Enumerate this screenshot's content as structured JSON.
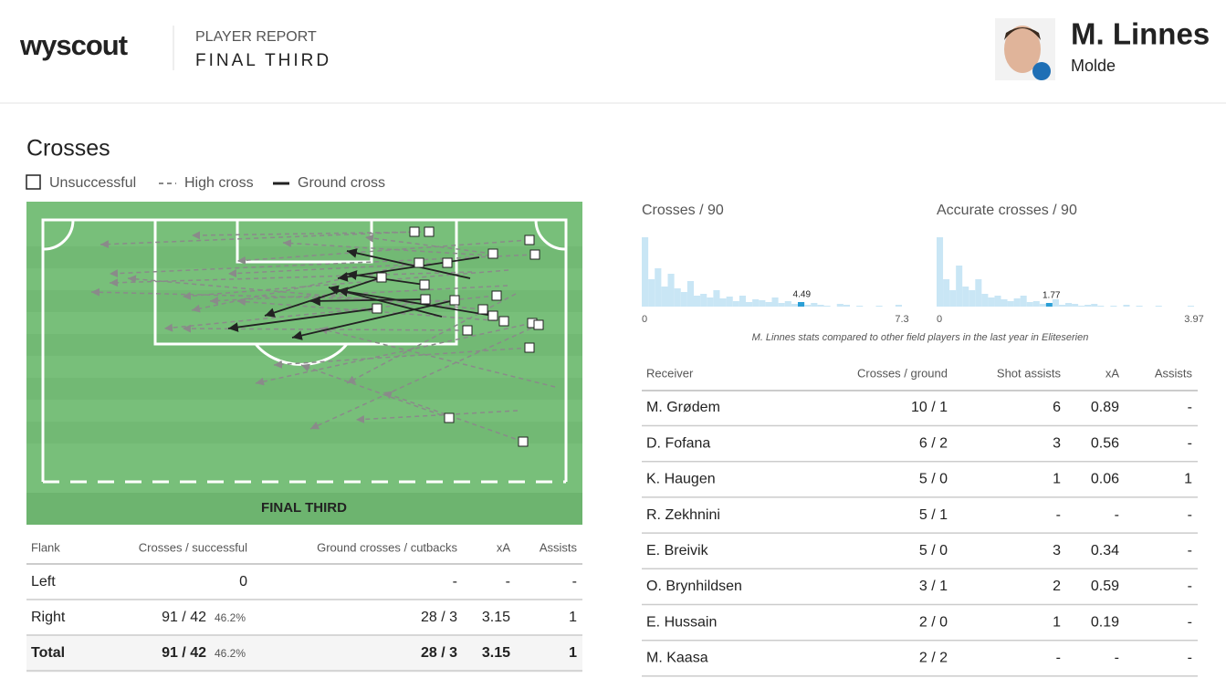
{
  "header": {
    "logo": "wyscout",
    "report": "PLAYER REPORT",
    "section": "FINAL THIRD",
    "player": "M. Linnes",
    "team": "Molde"
  },
  "crosses": {
    "title": "Crosses",
    "legend": [
      "Unsuccessful",
      "High cross",
      "Ground cross"
    ],
    "pitch_label": "FINAL THIRD",
    "flank_table": {
      "columns": [
        "Flank",
        "Crosses / successful",
        "Ground crosses / cutbacks",
        "xA",
        "Assists"
      ],
      "rows": [
        {
          "flank": "Left",
          "crosses": "0",
          "ground": "-",
          "xa": "-",
          "assists": "-"
        },
        {
          "flank": "Right",
          "crosses": "91 / 42",
          "pct": "46.2%",
          "ground": "28 / 3",
          "xa": "3.15",
          "assists": "1"
        },
        {
          "flank": "Total",
          "crosses": "91 / 42",
          "pct": "46.2%",
          "ground": "28 / 3",
          "xa": "3.15",
          "assists": "1"
        }
      ]
    }
  },
  "histograms": [
    {
      "title": "Crosses / 90",
      "xticks": [
        0,
        7.3
      ],
      "marker": 4.49,
      "counts": [
        76,
        30,
        42,
        22,
        36,
        20,
        16,
        28,
        12,
        14,
        10,
        18,
        9,
        11,
        6,
        12,
        5,
        8,
        7,
        5,
        10,
        4,
        6,
        3,
        5,
        2,
        4,
        2,
        1,
        0,
        3,
        2,
        0,
        1,
        0,
        0,
        1,
        0,
        0,
        2
      ]
    },
    {
      "title": "Accurate crosses / 90",
      "xticks": [
        0,
        3.97
      ],
      "marker": 1.77,
      "counts": [
        76,
        30,
        18,
        45,
        22,
        18,
        30,
        14,
        10,
        12,
        8,
        6,
        9,
        12,
        5,
        6,
        3,
        4,
        8,
        2,
        4,
        3,
        1,
        2,
        3,
        1,
        0,
        1,
        0,
        2,
        0,
        1,
        0,
        0,
        1,
        0,
        0,
        0,
        0,
        1
      ]
    }
  ],
  "note": "M. Linnes stats compared to other field players in the last year in Eliteserien",
  "receivers": {
    "columns": [
      "Receiver",
      "Crosses / ground",
      "Shot assists",
      "xA",
      "Assists"
    ],
    "rows": [
      [
        "M. Grødem",
        "10 / 1",
        "6",
        "0.89",
        "-"
      ],
      [
        "D. Fofana",
        "6 / 2",
        "3",
        "0.56",
        "-"
      ],
      [
        "K. Haugen",
        "5 / 0",
        "1",
        "0.06",
        "1"
      ],
      [
        "R. Zekhnini",
        "5 / 1",
        "-",
        "-",
        "-"
      ],
      [
        "E. Breivik",
        "5 / 0",
        "3",
        "0.34",
        "-"
      ],
      [
        "O. Brynhildsen",
        "3 / 1",
        "2",
        "0.59",
        "-"
      ],
      [
        "E. Hussain",
        "2 / 0",
        "1",
        "0.19",
        "-"
      ],
      [
        "M. Kaasa",
        "2 / 2",
        "-",
        "-",
        "-"
      ]
    ]
  }
}
